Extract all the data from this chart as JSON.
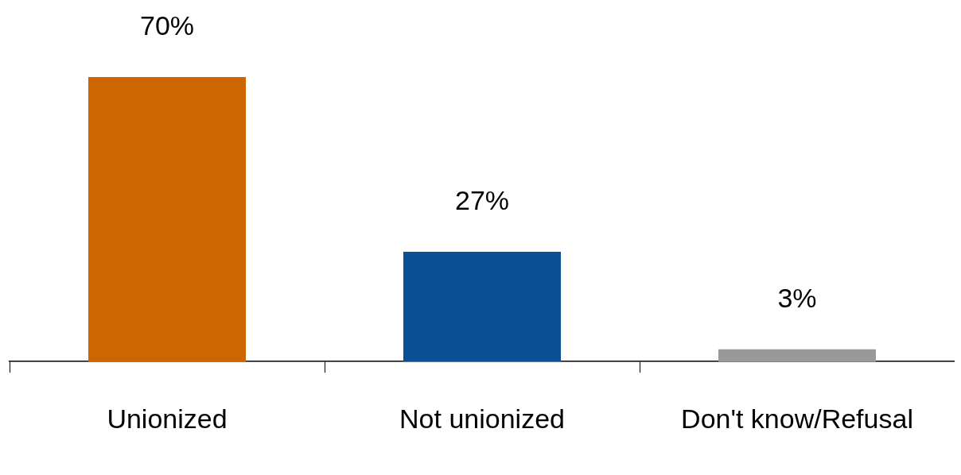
{
  "chart_data": {
    "type": "bar",
    "categories": [
      "Unionized",
      "Not unionized",
      "Don't know/Refusal"
    ],
    "values": [
      70,
      27,
      3
    ],
    "colors": [
      "#cc6600",
      "#0b5094",
      "#999999"
    ],
    "value_labels": [
      "70%",
      "27%",
      "3%"
    ],
    "grid": false,
    "legend": false
  }
}
